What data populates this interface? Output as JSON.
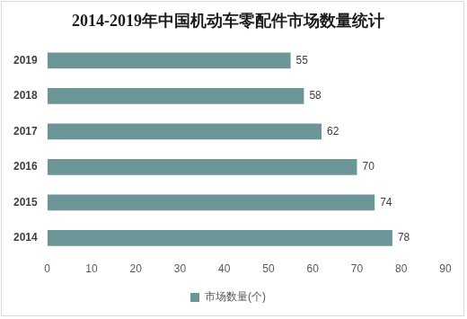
{
  "chart_data": {
    "type": "bar",
    "title": "2014-2019年中国机动车零配件市场数量统计",
    "orientation": "horizontal",
    "categories": [
      "2019",
      "2018",
      "2017",
      "2016",
      "2015",
      "2014"
    ],
    "series": [
      {
        "name": "市场数量(个)",
        "color": "#6b9597",
        "values": [
          55,
          58,
          62,
          70,
          74,
          78
        ]
      }
    ],
    "xlim": [
      0,
      90
    ],
    "xticks": [
      0,
      10,
      20,
      30,
      40,
      50,
      60,
      70,
      80,
      90
    ],
    "grid": false,
    "legend": "bottom",
    "data_labels": true
  }
}
